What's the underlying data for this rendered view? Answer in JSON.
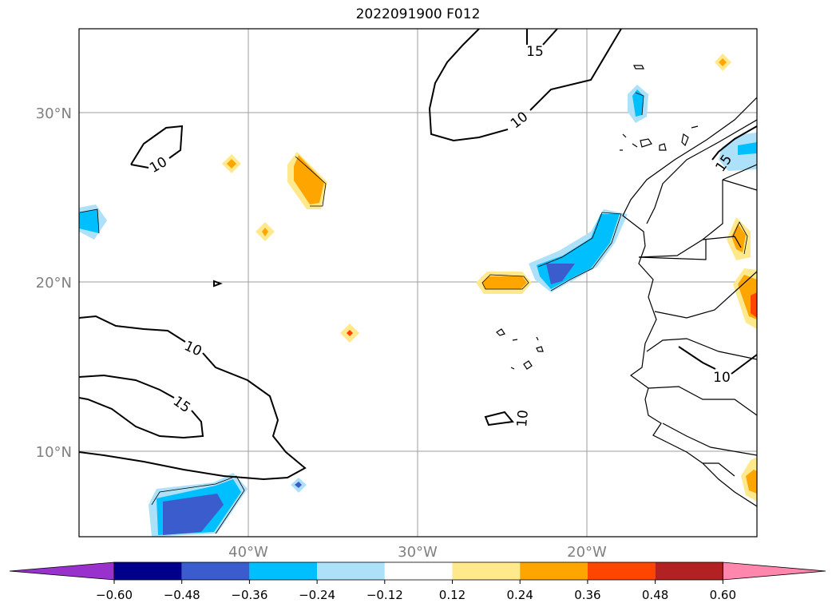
{
  "title": "2022091900 F012",
  "map": {
    "lat_labels": [
      "30°N",
      "20°N",
      "10°N"
    ],
    "lon_labels": [
      "40°W",
      "30°W",
      "20°W"
    ],
    "contour_labels": [
      "15",
      "10",
      "15",
      "10",
      "10",
      "15",
      "10",
      "10"
    ]
  },
  "colorbar": {
    "ticks": [
      "−0.60",
      "−0.48",
      "−0.36",
      "−0.24",
      "−0.12",
      "0.12",
      "0.24",
      "0.36",
      "0.48",
      "0.60"
    ],
    "colors": {
      "under": "#9932cc",
      "bins": [
        "#00008b",
        "#3a5ccc",
        "#00bfff",
        "#ade1fa",
        "#ffffff",
        "#ffe98c",
        "#ffa500",
        "#ff4500",
        "#b22222"
      ],
      "over": "#ff86ac"
    }
  }
}
